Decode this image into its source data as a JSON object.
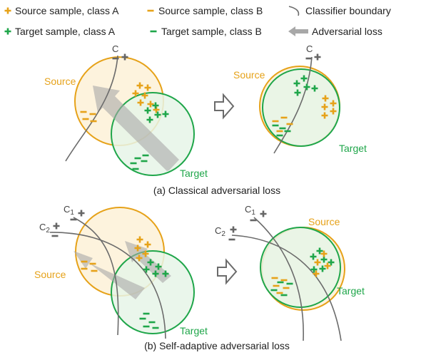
{
  "colors": {
    "source": "#E6A219",
    "target": "#1FA64A",
    "boundary": "#6b6b6b",
    "arrow": "#a8a8a8"
  },
  "legend": {
    "source_a": "Source sample, class A",
    "source_b": "Source sample, class B",
    "boundary": "Classifier boundary",
    "target_a": "Target sample, class A",
    "target_b": "Target sample, class B",
    "adversarial": "Adversarial loss"
  },
  "panel_a": {
    "caption": "(a) Classical adversarial loss",
    "source_label": "Source",
    "target_label": "Target",
    "boundary_label": "C"
  },
  "panel_b": {
    "caption": "(b) Self-adaptive adversarial loss",
    "source_label": "Source",
    "target_label": "Target",
    "boundary1_label": "C",
    "boundary1_sub": "1",
    "boundary2_label": "C",
    "boundary2_sub": "2"
  }
}
